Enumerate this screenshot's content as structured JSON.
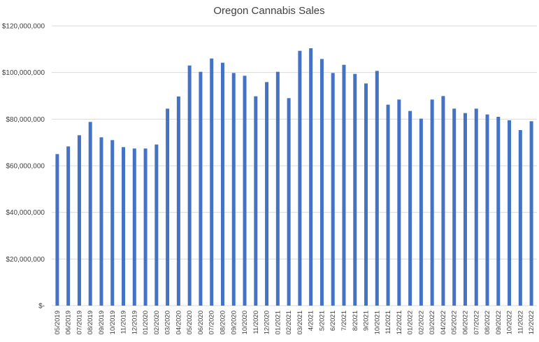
{
  "chart_data": {
    "type": "bar",
    "title": "Oregon Cannabis Sales",
    "xlabel": "",
    "ylabel": "",
    "ylim": [
      0,
      120000000
    ],
    "yticks": [
      0,
      20000000,
      40000000,
      60000000,
      80000000,
      100000000,
      120000000
    ],
    "ytick_labels": [
      "$-",
      "$20,000,000",
      "$40,000,000",
      "$60,000,000",
      "$80,000,000",
      "$100,000,000",
      "$120,000,000"
    ],
    "grid": true,
    "bar_color": "#4472c4",
    "gridline_color": "#d9d9d9",
    "categories": [
      "05/2019",
      "06/2019",
      "07/2019",
      "08/2019",
      "09/2019",
      "10/2019",
      "11/2019",
      "12/2019",
      "01/2020",
      "02/2020",
      "03/2020",
      "04/2020",
      "05/2020",
      "06/2020",
      "07/2020",
      "08/2020",
      "09/2020",
      "10/2020",
      "11/2020",
      "12/2020",
      "01/2021",
      "02/2021",
      "03/2021",
      "4/2021",
      "5/2021",
      "6/2021",
      "7/2021",
      "8/2021",
      "9/2021",
      "10/2021",
      "11/2021",
      "12/2021",
      "01/2022",
      "02/2022",
      "03/2022",
      "04/2022",
      "05/2022",
      "06/2022",
      "07/2022",
      "08/2022",
      "09/2022",
      "10/2022",
      "11/2022",
      "12/2022"
    ],
    "values": [
      65000000,
      68300000,
      73100000,
      78800000,
      72200000,
      71000000,
      68000000,
      67400000,
      67400000,
      69100000,
      84500000,
      89700000,
      103000000,
      100300000,
      106000000,
      104200000,
      99800000,
      98600000,
      89800000,
      95900000,
      100300000,
      89000000,
      109300000,
      110400000,
      105800000,
      99800000,
      103300000,
      99400000,
      95300000,
      100700000,
      86200000,
      88400000,
      83500000,
      80200000,
      88400000,
      89900000,
      84500000,
      82600000,
      84500000,
      82000000,
      81000000,
      79500000,
      75300000,
      79100000
    ]
  }
}
